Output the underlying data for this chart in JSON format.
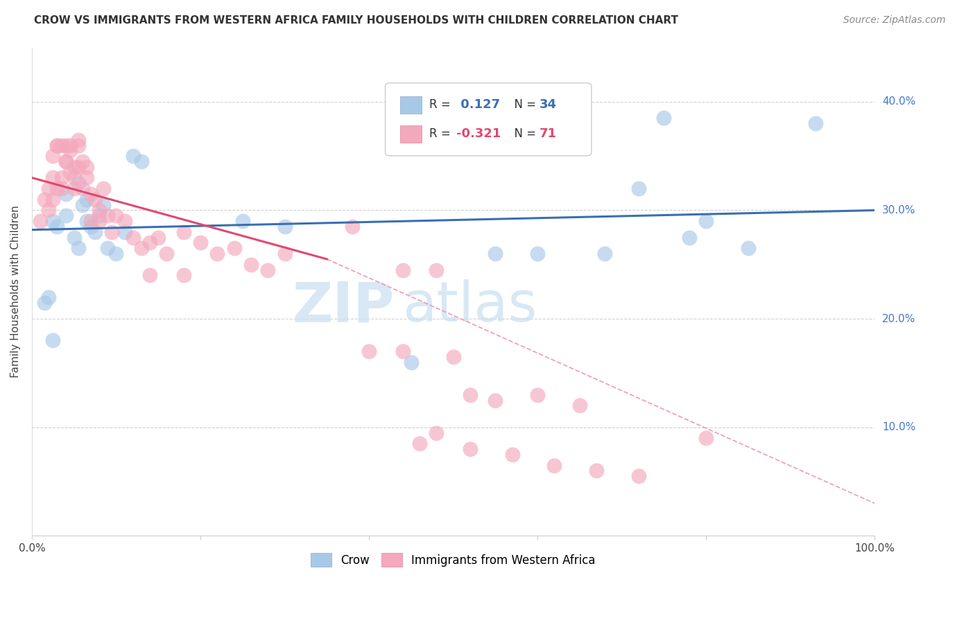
{
  "title": "CROW VS IMMIGRANTS FROM WESTERN AFRICA FAMILY HOUSEHOLDS WITH CHILDREN CORRELATION CHART",
  "source": "Source: ZipAtlas.com",
  "ylabel": "Family Households with Children",
  "r1": 0.127,
  "n1": 34,
  "r2": -0.321,
  "n2": 71,
  "legend_label1": "Crow",
  "legend_label2": "Immigrants from Western Africa",
  "color_blue": "#A8C8E8",
  "color_pink": "#F4A8BC",
  "color_blue_line": "#3A6FB0",
  "color_pink_line": "#E04870",
  "color_dashed": "#F0A0B8",
  "xlim": [
    0.0,
    1.0
  ],
  "ylim": [
    0.0,
    0.45
  ],
  "xticks": [
    0.0,
    0.2,
    0.4,
    0.6,
    0.8,
    1.0
  ],
  "xtick_labels": [
    "0.0%",
    "",
    "",
    "",
    "",
    "100.0%"
  ],
  "yticks": [
    0.1,
    0.2,
    0.3,
    0.4
  ],
  "ytick_labels": [
    "10.0%",
    "20.0%",
    "30.0%",
    "40.0%"
  ],
  "blue_line_x": [
    0.0,
    1.0
  ],
  "blue_line_y": [
    0.282,
    0.3
  ],
  "pink_line_x": [
    0.0,
    0.35
  ],
  "pink_line_y": [
    0.33,
    0.255
  ],
  "dashed_line_x": [
    0.35,
    1.0
  ],
  "dashed_line_y": [
    0.255,
    0.03
  ],
  "watermark_zip": "ZIP",
  "watermark_atlas": "atlas",
  "background_color": "#FFFFFF",
  "grid_color": "#CCCCCC",
  "blue_scatter_x": [
    0.015,
    0.025,
    0.03,
    0.04,
    0.05,
    0.055,
    0.06,
    0.065,
    0.07,
    0.075,
    0.08,
    0.085,
    0.09,
    0.1,
    0.11,
    0.12,
    0.13,
    0.04,
    0.055,
    0.065,
    0.25,
    0.3,
    0.6,
    0.68,
    0.72,
    0.75,
    0.78,
    0.8,
    0.85,
    0.02,
    0.025,
    0.45,
    0.55,
    0.93
  ],
  "blue_scatter_y": [
    0.215,
    0.29,
    0.285,
    0.295,
    0.275,
    0.265,
    0.305,
    0.29,
    0.285,
    0.28,
    0.295,
    0.305,
    0.265,
    0.26,
    0.28,
    0.35,
    0.345,
    0.315,
    0.325,
    0.31,
    0.29,
    0.285,
    0.26,
    0.26,
    0.32,
    0.385,
    0.275,
    0.29,
    0.265,
    0.22,
    0.18,
    0.16,
    0.26,
    0.38
  ],
  "pink_scatter_x": [
    0.01,
    0.015,
    0.02,
    0.025,
    0.02,
    0.025,
    0.03,
    0.025,
    0.03,
    0.035,
    0.03,
    0.035,
    0.04,
    0.035,
    0.04,
    0.045,
    0.04,
    0.045,
    0.05,
    0.045,
    0.05,
    0.055,
    0.05,
    0.055,
    0.06,
    0.055,
    0.06,
    0.065,
    0.07,
    0.065,
    0.07,
    0.075,
    0.08,
    0.085,
    0.08,
    0.09,
    0.095,
    0.1,
    0.11,
    0.12,
    0.13,
    0.14,
    0.15,
    0.16,
    0.18,
    0.2,
    0.22,
    0.24,
    0.14,
    0.18,
    0.26,
    0.3,
    0.28,
    0.38,
    0.4,
    0.44,
    0.44,
    0.48,
    0.5,
    0.52,
    0.55,
    0.6,
    0.65,
    0.46,
    0.48,
    0.52,
    0.57,
    0.62,
    0.67,
    0.72,
    0.8
  ],
  "pink_scatter_y": [
    0.29,
    0.31,
    0.3,
    0.35,
    0.32,
    0.33,
    0.36,
    0.31,
    0.32,
    0.36,
    0.36,
    0.33,
    0.345,
    0.32,
    0.345,
    0.36,
    0.36,
    0.335,
    0.33,
    0.355,
    0.34,
    0.36,
    0.32,
    0.365,
    0.345,
    0.34,
    0.32,
    0.34,
    0.315,
    0.33,
    0.29,
    0.31,
    0.3,
    0.32,
    0.29,
    0.295,
    0.28,
    0.295,
    0.29,
    0.275,
    0.265,
    0.27,
    0.275,
    0.26,
    0.28,
    0.27,
    0.26,
    0.265,
    0.24,
    0.24,
    0.25,
    0.26,
    0.245,
    0.285,
    0.17,
    0.245,
    0.17,
    0.245,
    0.165,
    0.13,
    0.125,
    0.13,
    0.12,
    0.085,
    0.095,
    0.08,
    0.075,
    0.065,
    0.06,
    0.055,
    0.09
  ]
}
